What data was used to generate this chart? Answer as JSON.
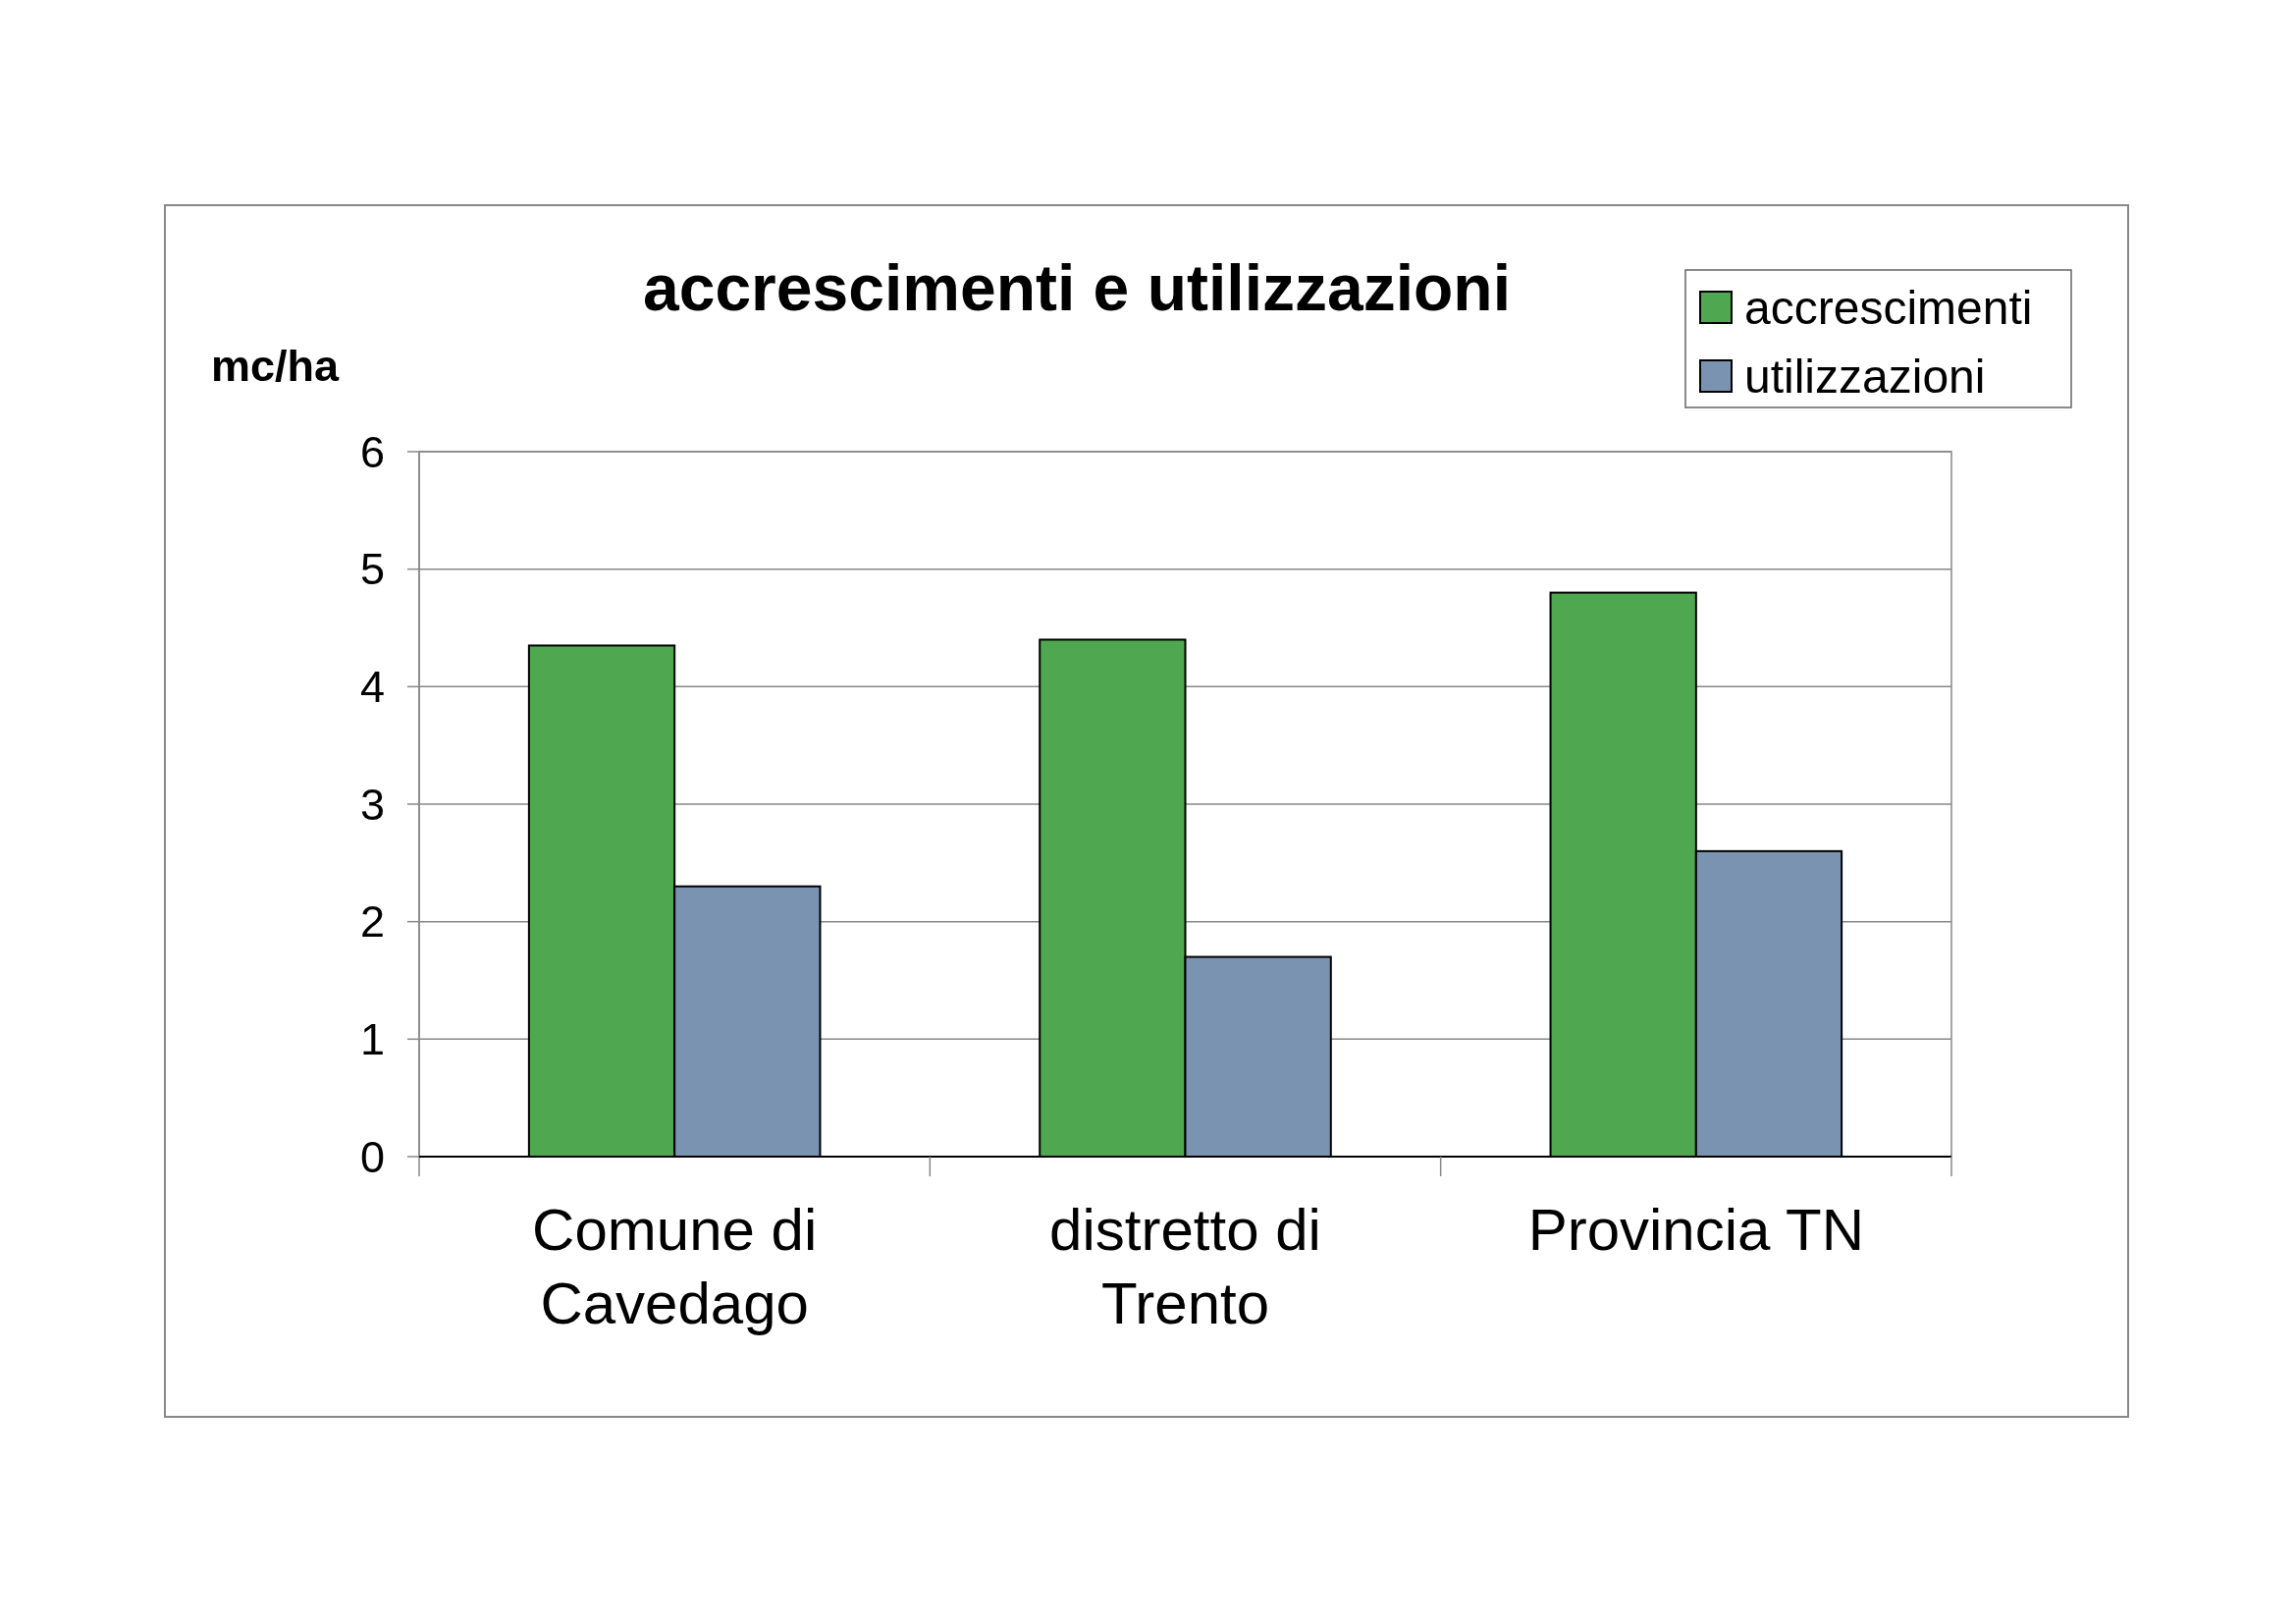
{
  "chart_data": {
    "type": "bar",
    "title": "accrescimenti e utilizzazioni",
    "ylabel": "mc/ha",
    "categories": [
      "Comune di Cavedago",
      "distretto di Trento",
      "Provincia TN"
    ],
    "series": [
      {
        "name": "accrescimenti",
        "color": "#4fa84f",
        "values": [
          4.35,
          4.4,
          4.8
        ]
      },
      {
        "name": "utilizzazioni",
        "color": "#7a93b0",
        "values": [
          2.3,
          1.7,
          2.6
        ]
      }
    ],
    "ylim": [
      0,
      6
    ],
    "yticks": [
      0,
      1,
      2,
      3,
      4,
      5,
      6
    ],
    "grid": "y",
    "legend": "top right"
  }
}
